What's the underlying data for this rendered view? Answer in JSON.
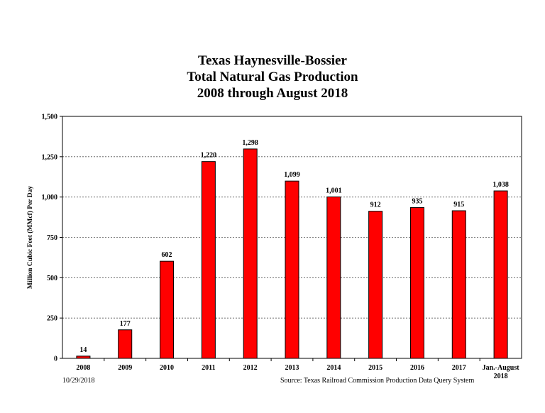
{
  "chart_data": {
    "type": "bar",
    "title": [
      "Texas Haynesville-Bossier",
      "Total Natural Gas Production",
      "2008 through August 2018"
    ],
    "xlabel": "",
    "ylabel": "Million Cubic Feet (MMcf) Per Day",
    "ylim": [
      0,
      1500
    ],
    "yticks": [
      0,
      250,
      500,
      750,
      1000,
      1250,
      1500
    ],
    "ytick_labels": [
      "0",
      "250",
      "500",
      "750",
      "1,000",
      "1,250",
      "1,500"
    ],
    "categories": [
      [
        "2008"
      ],
      [
        "2009"
      ],
      [
        "2010"
      ],
      [
        "2011"
      ],
      [
        "2012"
      ],
      [
        "2013"
      ],
      [
        "2014"
      ],
      [
        "2015"
      ],
      [
        "2016"
      ],
      [
        "2017"
      ],
      [
        "Jan.-August",
        "2018"
      ]
    ],
    "values": [
      14,
      177,
      602,
      1220,
      1298,
      1099,
      1001,
      912,
      935,
      915,
      1038
    ],
    "value_labels": [
      "14",
      "177",
      "602",
      "1,220",
      "1,298",
      "1,099",
      "1,001",
      "912",
      "935",
      "915",
      "1,038"
    ],
    "grid": "horizontal dashed",
    "bar_color": "#ff0000"
  },
  "footer": {
    "date": "10/29/2018",
    "source": "Source: Texas Railroad Commission Production Data Query System"
  }
}
